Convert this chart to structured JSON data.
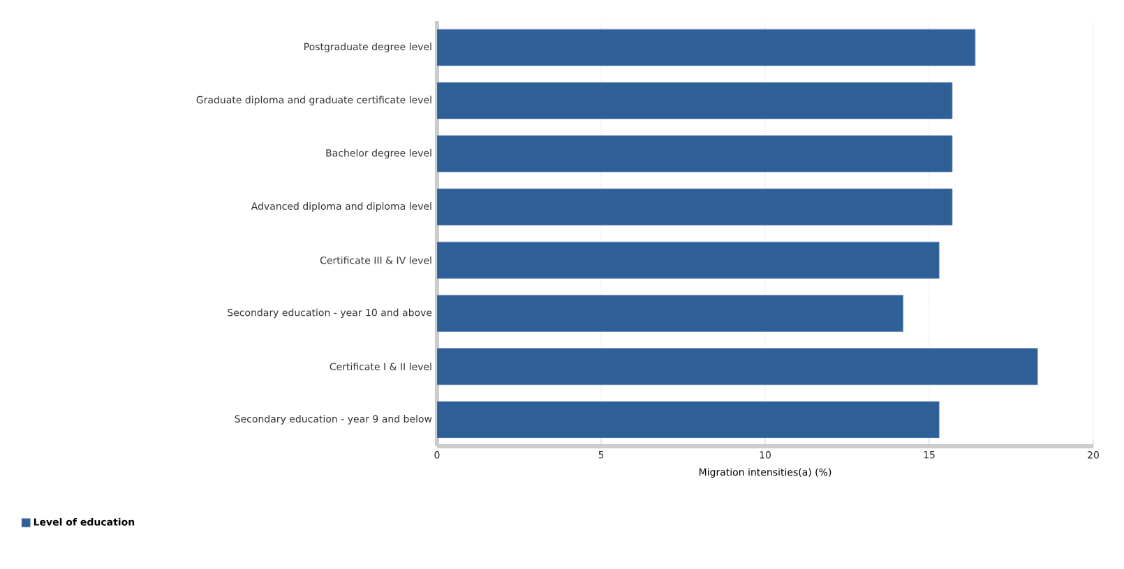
{
  "chart_data": {
    "type": "bar",
    "orientation": "horizontal",
    "xlabel": "Migration intensities(a) (%)",
    "categories": [
      "Postgraduate degree level",
      "Graduate diploma and graduate certificate level",
      "Bachelor degree level",
      "Advanced diploma and diploma level",
      "Certificate III & IV level",
      "Secondary education - year 10 and above",
      "Certificate I & II level",
      "Secondary education - year 9 and below"
    ],
    "series": [
      {
        "name": "Level of education",
        "color": "#2f5f97",
        "values": [
          16.4,
          15.7,
          15.7,
          15.7,
          15.3,
          14.2,
          18.3,
          15.3
        ]
      }
    ],
    "xlim": [
      0,
      20
    ],
    "xticks": [
      0,
      5,
      10,
      15,
      20
    ],
    "grid": "x",
    "legend": "bottom left"
  }
}
